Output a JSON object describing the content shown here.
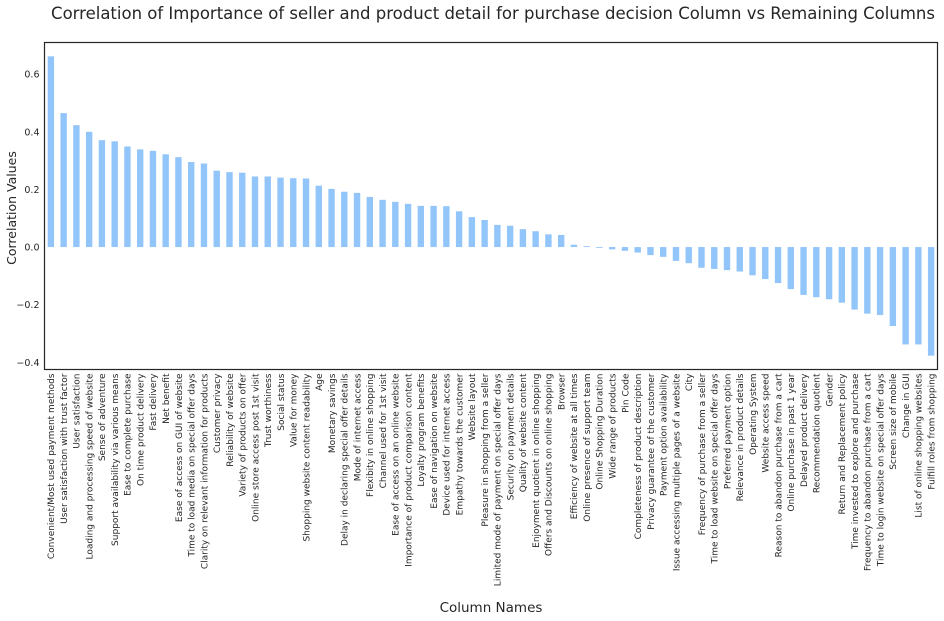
{
  "chart_data": {
    "type": "bar",
    "title": "Correlation of Importance of seller and product detail for purchase decision Column vs Remaining Columns",
    "xlabel": "Column Names",
    "ylabel": "Correlation Values",
    "ylim": [
      -0.425,
      0.71
    ],
    "yticks": [
      {
        "value": 0.6,
        "label": "0.6"
      },
      {
        "value": 0.4,
        "label": "0.4"
      },
      {
        "value": 0.2,
        "label": "0.2"
      },
      {
        "value": 0.0,
        "label": "0.0"
      },
      {
        "value": -0.2,
        "label": "−0.2"
      },
      {
        "value": -0.4,
        "label": "−0.4"
      }
    ],
    "grid": false,
    "bar_color": "#92c5fa",
    "categories": [
      "Convenient/Most used payment methods",
      "User satisfaction with trust factor",
      "User satisfaction",
      "Loading and processing speed of website",
      "Sense of adventure",
      "Support availability via various means",
      "Ease to complete purchase",
      "On time product delivery",
      "Fast delivery",
      "Net benefit",
      "Ease of access on GUI of website",
      "Time to load media on special offer days",
      "Clarity on relevant information for products",
      "Customer privacy",
      "Reliability of website",
      "Variety of products on offer",
      "Online store access post 1st visit",
      "Trust worthiness",
      "Social status",
      "Value for money",
      "Shopping website content readability",
      "Age",
      "Monetary savings",
      "Delay in declaring special offer details",
      "Mode of internet access",
      "Flexibity in online shopping",
      "Channel used for 1st visit",
      "Ease of access on an online website",
      "Importance of product comparison content",
      "Loyalty program benefits",
      "Ease of navigation on website",
      "Device used for internet access",
      "Empathy towards the customer",
      "Website layout",
      "Pleasure in shopping from a seller",
      "Limited mode of payment on special offer days",
      "Security on payment details",
      "Quality of website content",
      "Enjoyment quotient in online shopping",
      "Offers and Discounts on online shopping",
      "Browser",
      "Efficiency of website at all times",
      "Online presence of support team",
      "Online Shopping Duration",
      "Wide range of products",
      "Pin Code",
      "Completeness of product description",
      "Privacy guarantee of the customer",
      "Payment option availability",
      "Issue accessing multiple pages of a website",
      "City",
      "Frequency of purchase from a seller",
      "Time to load website on special offer days",
      "Preferred payment option",
      "Relevance in product details",
      "Operating System",
      "Website access speed",
      "Reason to abandon purchase from a cart",
      "Online purchase in past 1 year",
      "Delayed product delivery",
      "Recommendation quotient",
      "Gender",
      "Return and Replacement policy",
      "Time invested to explore and purchase",
      "Frequency to abandon purchase from a cart",
      "Time to login website on special offer days",
      "Screen size of mobile",
      "Change in GUI",
      "List of online shopping websites",
      "Fulfill roles from shopping"
    ],
    "values": [
      0.662,
      0.465,
      0.423,
      0.4,
      0.371,
      0.367,
      0.349,
      0.339,
      0.334,
      0.322,
      0.312,
      0.295,
      0.29,
      0.265,
      0.26,
      0.258,
      0.245,
      0.245,
      0.241,
      0.239,
      0.238,
      0.213,
      0.202,
      0.192,
      0.188,
      0.174,
      0.164,
      0.157,
      0.15,
      0.143,
      0.143,
      0.142,
      0.124,
      0.104,
      0.094,
      0.077,
      0.074,
      0.062,
      0.055,
      0.044,
      0.042,
      0.008,
      0.003,
      -0.003,
      -0.008,
      -0.013,
      -0.019,
      -0.028,
      -0.034,
      -0.048,
      -0.056,
      -0.072,
      -0.076,
      -0.08,
      -0.085,
      -0.098,
      -0.111,
      -0.125,
      -0.146,
      -0.166,
      -0.174,
      -0.181,
      -0.193,
      -0.217,
      -0.231,
      -0.236,
      -0.274,
      -0.338,
      -0.338,
      -0.377
    ]
  }
}
